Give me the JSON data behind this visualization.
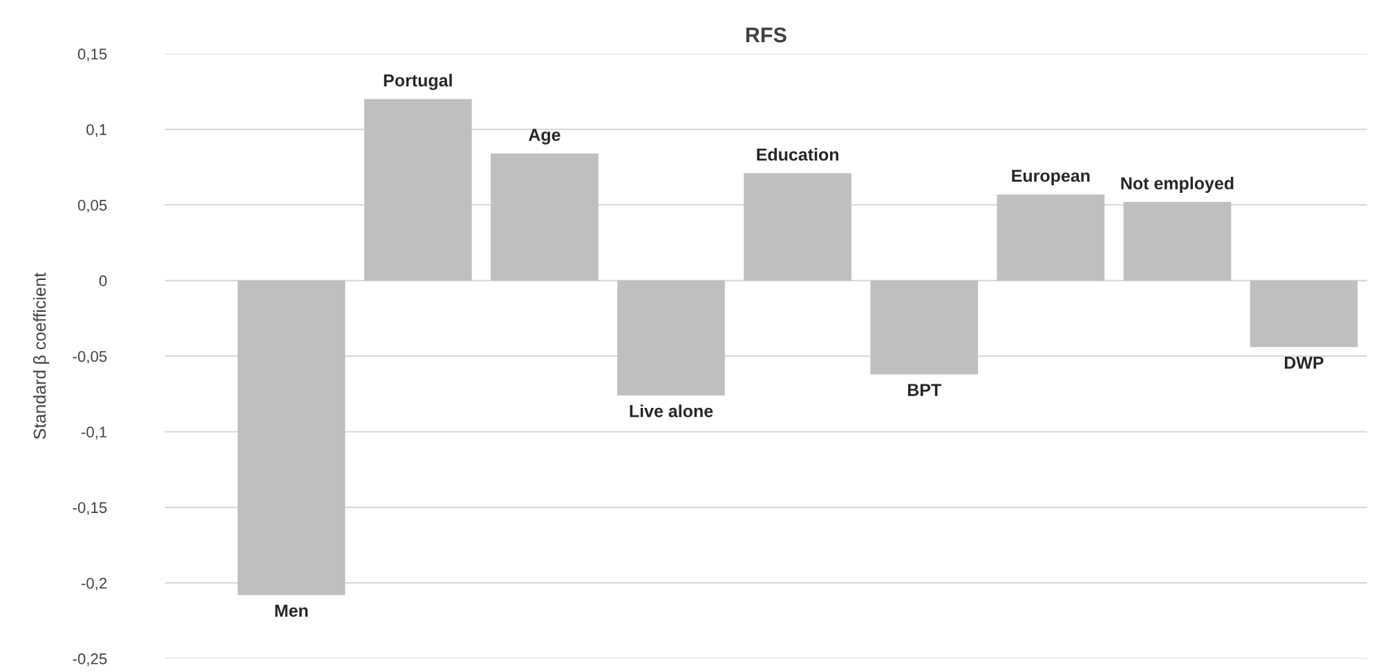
{
  "chart_data": {
    "type": "bar",
    "title": "RFS",
    "ylabel": "Standard β coefficient",
    "categories": [
      "Men",
      "Portugal",
      "Age",
      "Live alone",
      "Education",
      "BPT",
      "European",
      "Not employed",
      "DWP"
    ],
    "values": [
      -0.208,
      0.12,
      0.084,
      -0.076,
      0.071,
      -0.062,
      0.057,
      0.052,
      -0.044
    ],
    "color": "#bfbfbf",
    "ylim": [
      -0.25,
      0.15
    ],
    "yticks": [
      {
        "value": -0.25,
        "label": "-0,25"
      },
      {
        "value": -0.2,
        "label": "-0,2"
      },
      {
        "value": -0.15,
        "label": "-0,15"
      },
      {
        "value": -0.1,
        "label": "-0,1"
      },
      {
        "value": -0.05,
        "label": "-0,05"
      },
      {
        "value": 0,
        "label": "0"
      },
      {
        "value": 0.05,
        "label": "0,05"
      },
      {
        "value": 0.1,
        "label": "0,1"
      },
      {
        "value": 0.15,
        "label": "0,15"
      }
    ],
    "grid": "y"
  }
}
